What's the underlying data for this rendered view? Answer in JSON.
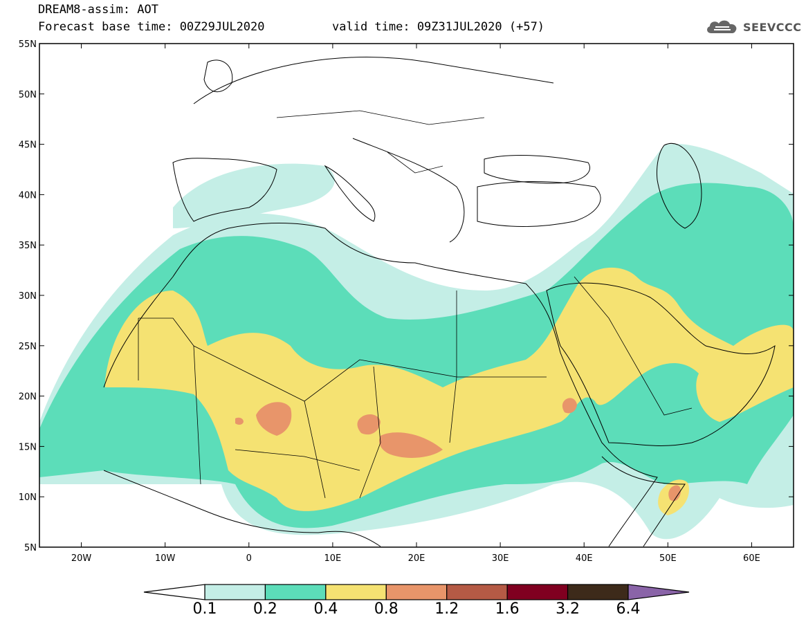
{
  "header": {
    "title": "DREAM8-assim: AOT",
    "base_time": "Forecast base time: 00Z29JUL2020",
    "valid_time": "valid time: 09Z31JUL2020 (+57)"
  },
  "logo": {
    "text": "SEEVCCC",
    "icon": "cloud-icon"
  },
  "map": {
    "lon_range": [
      -25,
      65
    ],
    "lat_range": [
      5,
      55
    ],
    "lat_ticks": [
      "55N",
      "50N",
      "45N",
      "40N",
      "35N",
      "30N",
      "25N",
      "20N",
      "15N",
      "10N",
      "5N"
    ],
    "lon_ticks": [
      "20W",
      "10W",
      "0",
      "10E",
      "20E",
      "30E",
      "40E",
      "50E",
      "60E"
    ],
    "variable": "Aerosol optical thickness"
  },
  "colorbar": {
    "labels": [
      "0.1",
      "0.2",
      "0.4",
      "0.8",
      "1.2",
      "1.6",
      "3.2",
      "6.4"
    ],
    "colors": [
      "#c4eee6",
      "#5cddb9",
      "#f5e272",
      "#e8956a",
      "#b55a45",
      "#800020",
      "#3d2a1a",
      "#8a64a8"
    ],
    "under_color": "#ffffff"
  }
}
